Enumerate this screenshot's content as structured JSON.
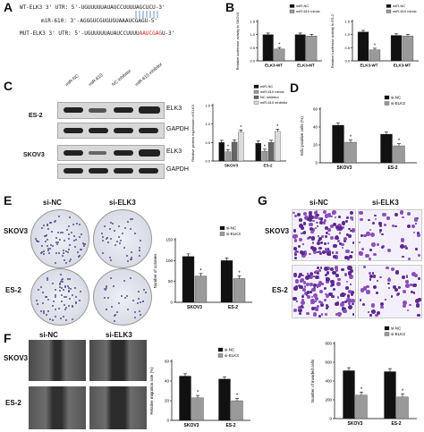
{
  "panels": {
    "A": {
      "letter": "A",
      "wt_label": "WT-ELK3 3' UTR: 5'-UGUUUUUAUAUCCUUUUAGCUCU-3'",
      "mir_label": "miR-610: 3'-AGGGUCGUGUGUAAAUCGAGU-5'",
      "mut_prefix": "MUT-ELK3 3' UTR: 5'-UGUUUUUAUAUCCUUUU",
      "mut_highlight": "AAUCGAG",
      "mut_suffix": "U-3'"
    },
    "B": {
      "letter": "B"
    },
    "C": {
      "letter": "C",
      "lane_labels": [
        "miR-NC",
        "miR-610",
        "NC inhibitor",
        "miR-610 inhibitor"
      ],
      "cell_labels": [
        "ES-2",
        "SKOV3"
      ],
      "protein_labels": [
        "ELK3",
        "GAPDH",
        "ELK3",
        "GAPDH"
      ]
    },
    "D": {
      "letter": "D"
    },
    "E": {
      "letter": "E",
      "col_labels": [
        "si-NC",
        "si-ELK3"
      ],
      "row_labels": [
        "SKOV3",
        "ES-2"
      ]
    },
    "F": {
      "letter": "F",
      "col_labels": [
        "si-NC",
        "si-ELK3"
      ],
      "row_labels": [
        "SKOV3",
        "ES-2"
      ]
    },
    "G": {
      "letter": "G",
      "col_labels": [
        "si-NC",
        "si-ELK3"
      ],
      "row_labels": [
        "SKOV3",
        "ES-2"
      ]
    }
  },
  "chart_data": [
    {
      "id": "B1",
      "type": "bar",
      "ylabel": "Relative luciferase activity in SKOV3",
      "categories": [
        "ELK3-WT",
        "ELK3-MT"
      ],
      "series": [
        {
          "name": "miR-NC",
          "values": [
            1.0,
            1.0
          ],
          "color": "#111111"
        },
        {
          "name": "miR-610 mimic",
          "values": [
            0.45,
            0.95
          ],
          "color": "#9a9a9a"
        }
      ],
      "ylim": [
        0,
        1.5
      ],
      "yticks": [
        "0.0",
        "0.5",
        "1.0",
        "1.5"
      ],
      "star_on": [
        [
          0,
          1
        ]
      ],
      "legend": "top-right"
    },
    {
      "id": "B2",
      "type": "bar",
      "ylabel": "Relative luciferase activity in ES-2",
      "categories": [
        "ELK3-WT",
        "ELK3-MT"
      ],
      "series": [
        {
          "name": "miR-NC",
          "values": [
            1.1,
            0.97
          ],
          "color": "#111111"
        },
        {
          "name": "miR-610 mimic",
          "values": [
            0.42,
            0.95
          ],
          "color": "#9a9a9a"
        }
      ],
      "ylim": [
        0,
        1.5
      ],
      "yticks": [
        "0.0",
        "0.5",
        "1.0",
        "1.5"
      ],
      "star_on": [
        [
          0,
          1
        ]
      ],
      "legend": "top-right"
    },
    {
      "id": "C",
      "type": "bar",
      "ylabel": "Relative protein expression of ELK3",
      "categories": [
        "SKOV3",
        "ES-2"
      ],
      "series": [
        {
          "name": "miR-NC",
          "values": [
            0.5,
            0.48
          ],
          "color": "#111111"
        },
        {
          "name": "miR-610 mimic",
          "values": [
            0.25,
            0.26
          ],
          "color": "#9a9a9a"
        },
        {
          "name": "NC inhibitor",
          "values": [
            0.51,
            0.5
          ],
          "color": "#666666"
        },
        {
          "name": "miR-610 inhibitor",
          "values": [
            0.78,
            0.8
          ],
          "color": "#dcdcdc"
        }
      ],
      "ylim": [
        0,
        1.5
      ],
      "yticks": [
        "0.0",
        "0.5",
        "1.0",
        "1.5"
      ],
      "star_on": [
        [
          0,
          1
        ],
        [
          0,
          3
        ],
        [
          1,
          1
        ],
        [
          1,
          3
        ]
      ],
      "legend": "top-right"
    },
    {
      "id": "D",
      "type": "bar",
      "ylabel": "EdU positive cells (%)",
      "categories": [
        "SKOV3",
        "ES-2"
      ],
      "series": [
        {
          "name": "si-NC",
          "values": [
            42,
            32
          ],
          "color": "#111111"
        },
        {
          "name": "si-ELK3",
          "values": [
            23,
            19
          ],
          "color": "#9a9a9a"
        }
      ],
      "ylim": [
        0,
        60
      ],
      "yticks": [
        "0",
        "20",
        "40",
        "60"
      ],
      "star_on": [
        [
          0,
          1
        ],
        [
          1,
          1
        ]
      ],
      "legend": "top-right"
    },
    {
      "id": "E",
      "type": "bar",
      "ylabel": "Number of colonies",
      "categories": [
        "SKOV3",
        "ES-2"
      ],
      "series": [
        {
          "name": "si-NC",
          "values": [
            110,
            100
          ],
          "color": "#111111"
        },
        {
          "name": "si-ELK3",
          "values": [
            63,
            57
          ],
          "color": "#9a9a9a"
        }
      ],
      "ylim": [
        0,
        150
      ],
      "yticks": [
        "0",
        "50",
        "100",
        "150"
      ],
      "star_on": [
        [
          0,
          1
        ],
        [
          1,
          1
        ]
      ],
      "legend": "top-right"
    },
    {
      "id": "F",
      "type": "bar",
      "ylabel": "Relative migration rate (%)",
      "categories": [
        "SKOV3",
        "ES-2"
      ],
      "series": [
        {
          "name": "si-NC",
          "values": [
            45,
            42
          ],
          "color": "#111111"
        },
        {
          "name": "si-ELK3",
          "values": [
            23,
            20
          ],
          "color": "#9a9a9a"
        }
      ],
      "ylim": [
        0,
        60
      ],
      "yticks": [
        "0",
        "20",
        "40",
        "60"
      ],
      "star_on": [
        [
          0,
          1
        ],
        [
          1,
          1
        ]
      ],
      "legend": "top-right"
    },
    {
      "id": "G",
      "type": "bar",
      "ylabel": "Number of invaded cells",
      "categories": [
        "SKOV3",
        "ES-2"
      ],
      "series": [
        {
          "name": "si-NC",
          "values": [
            510,
            500
          ],
          "color": "#111111"
        },
        {
          "name": "si-ELK3",
          "values": [
            250,
            230
          ],
          "color": "#9a9a9a"
        }
      ],
      "ylim": [
        0,
        800
      ],
      "yticks": [
        "0",
        "200",
        "400",
        "600",
        "800"
      ],
      "star_on": [
        [
          0,
          1
        ],
        [
          1,
          1
        ]
      ],
      "legend": "top-right"
    }
  ]
}
